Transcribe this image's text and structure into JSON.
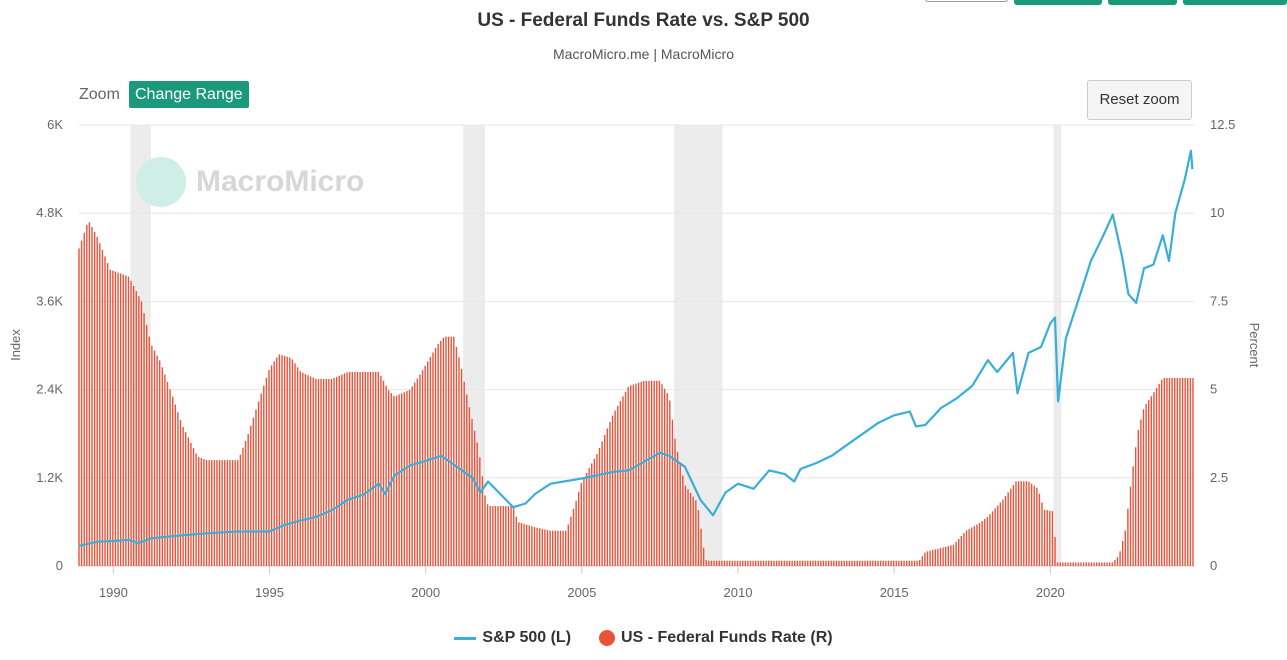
{
  "header": {
    "title": "US - Federal Funds Rate vs. S&P 500",
    "subtitle": "MacroMicro.me | MacroMicro"
  },
  "toolbar": {
    "zoom_label": "Zoom",
    "change_range_label": "Change Range",
    "reset_zoom_label": "Reset zoom",
    "accent_color": "#1a9a7a"
  },
  "watermark": {
    "text": "MacroMicro"
  },
  "legend": {
    "sp500_label": "S&P 500 (L)",
    "fed_label": "US - Federal Funds Rate (R)"
  },
  "chart_data": {
    "type": "line+bar",
    "title": "US - Federal Funds Rate vs. S&P 500",
    "subtitle": "MacroMicro.me | MacroMicro",
    "left_axis": {
      "label": "Index",
      "min": 0,
      "max": 6000,
      "ticks": [
        0,
        1200,
        2400,
        3600,
        4800,
        6000
      ],
      "tick_labels": [
        "0",
        "1.2K",
        "2.4K",
        "3.6K",
        "4.8K",
        "6K"
      ]
    },
    "right_axis": {
      "label": "Percent",
      "min": 0,
      "max": 12.5,
      "ticks": [
        0,
        2.5,
        5,
        7.5,
        10,
        12.5
      ],
      "tick_labels": [
        "0",
        "2.5",
        "5",
        "7.5",
        "10",
        "12.5"
      ]
    },
    "x_axis": {
      "min": 1988.9,
      "max": 2024.6,
      "ticks": [
        1990,
        1995,
        2000,
        2005,
        2010,
        2015,
        2020
      ],
      "tick_labels": [
        "1990",
        "1995",
        "2000",
        "2005",
        "2010",
        "2015",
        "2020"
      ]
    },
    "grid": true,
    "legend_placement": "bottom",
    "recessions": [
      [
        1990.55,
        1991.2
      ],
      [
        2001.2,
        2001.9
      ],
      [
        2007.95,
        2009.5
      ],
      [
        2020.1,
        2020.35
      ]
    ],
    "series": [
      {
        "name": "S&P 500 (L)",
        "color": "#3aaed8",
        "axis": "left",
        "kind": "line",
        "points": [
          [
            1988.9,
            275
          ],
          [
            1989.5,
            330
          ],
          [
            1990.0,
            340
          ],
          [
            1990.5,
            355
          ],
          [
            1990.8,
            310
          ],
          [
            1991.2,
            375
          ],
          [
            1992.0,
            410
          ],
          [
            1993.0,
            445
          ],
          [
            1994.0,
            470
          ],
          [
            1995.0,
            470
          ],
          [
            1995.5,
            560
          ],
          [
            1996.0,
            620
          ],
          [
            1996.5,
            670
          ],
          [
            1997.0,
            760
          ],
          [
            1997.5,
            900
          ],
          [
            1998.0,
            970
          ],
          [
            1998.5,
            1120
          ],
          [
            1998.7,
            980
          ],
          [
            1999.0,
            1230
          ],
          [
            1999.5,
            1370
          ],
          [
            2000.0,
            1430
          ],
          [
            2000.5,
            1500
          ],
          [
            2001.0,
            1350
          ],
          [
            2001.5,
            1200
          ],
          [
            2001.75,
            1000
          ],
          [
            2002.0,
            1150
          ],
          [
            2002.5,
            930
          ],
          [
            2002.8,
            800
          ],
          [
            2003.2,
            850
          ],
          [
            2003.5,
            980
          ],
          [
            2004.0,
            1120
          ],
          [
            2005.0,
            1190
          ],
          [
            2006.0,
            1280
          ],
          [
            2006.5,
            1300
          ],
          [
            2007.0,
            1420
          ],
          [
            2007.5,
            1540
          ],
          [
            2007.8,
            1500
          ],
          [
            2008.3,
            1350
          ],
          [
            2008.8,
            900
          ],
          [
            2009.2,
            690
          ],
          [
            2009.6,
            1000
          ],
          [
            2010.0,
            1120
          ],
          [
            2010.5,
            1050
          ],
          [
            2011.0,
            1300
          ],
          [
            2011.5,
            1250
          ],
          [
            2011.8,
            1150
          ],
          [
            2012.0,
            1320
          ],
          [
            2012.5,
            1400
          ],
          [
            2013.0,
            1500
          ],
          [
            2013.5,
            1650
          ],
          [
            2014.0,
            1800
          ],
          [
            2014.5,
            1950
          ],
          [
            2015.0,
            2050
          ],
          [
            2015.5,
            2100
          ],
          [
            2015.7,
            1900
          ],
          [
            2016.0,
            1920
          ],
          [
            2016.5,
            2150
          ],
          [
            2017.0,
            2280
          ],
          [
            2017.5,
            2450
          ],
          [
            2018.0,
            2800
          ],
          [
            2018.3,
            2640
          ],
          [
            2018.8,
            2900
          ],
          [
            2018.95,
            2350
          ],
          [
            2019.3,
            2900
          ],
          [
            2019.7,
            2980
          ],
          [
            2020.0,
            3300
          ],
          [
            2020.15,
            3380
          ],
          [
            2020.25,
            2240
          ],
          [
            2020.5,
            3100
          ],
          [
            2020.9,
            3620
          ],
          [
            2021.3,
            4150
          ],
          [
            2021.7,
            4500
          ],
          [
            2022.0,
            4780
          ],
          [
            2022.3,
            4200
          ],
          [
            2022.5,
            3700
          ],
          [
            2022.75,
            3580
          ],
          [
            2023.0,
            4050
          ],
          [
            2023.3,
            4100
          ],
          [
            2023.6,
            4500
          ],
          [
            2023.8,
            4150
          ],
          [
            2024.0,
            4800
          ],
          [
            2024.3,
            5250
          ],
          [
            2024.5,
            5650
          ],
          [
            2024.55,
            5400
          ]
        ]
      },
      {
        "name": "US - Federal Funds Rate (R)",
        "color": "#e8533a",
        "axis": "right",
        "kind": "bar",
        "points": [
          [
            1988.9,
            9.0
          ],
          [
            1989.2,
            9.8
          ],
          [
            1989.5,
            9.3
          ],
          [
            1989.9,
            8.4
          ],
          [
            1990.5,
            8.2
          ],
          [
            1990.9,
            7.5
          ],
          [
            1991.2,
            6.3
          ],
          [
            1991.5,
            5.8
          ],
          [
            1991.9,
            4.8
          ],
          [
            1992.2,
            4.0
          ],
          [
            1992.7,
            3.1
          ],
          [
            1993.0,
            3.0
          ],
          [
            1994.0,
            3.0
          ],
          [
            1994.3,
            3.7
          ],
          [
            1994.7,
            4.8
          ],
          [
            1995.0,
            5.6
          ],
          [
            1995.3,
            6.0
          ],
          [
            1995.7,
            5.9
          ],
          [
            1996.0,
            5.5
          ],
          [
            1996.5,
            5.3
          ],
          [
            1997.0,
            5.3
          ],
          [
            1997.5,
            5.5
          ],
          [
            1998.0,
            5.5
          ],
          [
            1998.5,
            5.5
          ],
          [
            1998.8,
            5.0
          ],
          [
            1999.0,
            4.8
          ],
          [
            1999.5,
            5.0
          ],
          [
            1999.8,
            5.4
          ],
          [
            2000.0,
            5.7
          ],
          [
            2000.4,
            6.3
          ],
          [
            2000.6,
            6.5
          ],
          [
            2000.9,
            6.5
          ],
          [
            2001.1,
            5.8
          ],
          [
            2001.4,
            4.5
          ],
          [
            2001.7,
            3.3
          ],
          [
            2001.9,
            2.0
          ],
          [
            2002.0,
            1.7
          ],
          [
            2002.8,
            1.7
          ],
          [
            2002.95,
            1.25
          ],
          [
            2003.5,
            1.1
          ],
          [
            2004.0,
            1.0
          ],
          [
            2004.5,
            1.0
          ],
          [
            2004.8,
            1.8
          ],
          [
            2005.0,
            2.4
          ],
          [
            2005.5,
            3.2
          ],
          [
            2006.0,
            4.3
          ],
          [
            2006.5,
            5.1
          ],
          [
            2007.0,
            5.25
          ],
          [
            2007.5,
            5.25
          ],
          [
            2007.8,
            4.8
          ],
          [
            2008.0,
            3.5
          ],
          [
            2008.3,
            2.3
          ],
          [
            2008.7,
            1.8
          ],
          [
            2008.95,
            0.2
          ],
          [
            2009.0,
            0.15
          ],
          [
            2015.8,
            0.15
          ],
          [
            2016.0,
            0.4
          ],
          [
            2016.9,
            0.6
          ],
          [
            2017.3,
            1.0
          ],
          [
            2017.7,
            1.2
          ],
          [
            2018.0,
            1.4
          ],
          [
            2018.5,
            1.9
          ],
          [
            2018.9,
            2.4
          ],
          [
            2019.3,
            2.4
          ],
          [
            2019.6,
            2.2
          ],
          [
            2019.8,
            1.6
          ],
          [
            2020.1,
            1.55
          ],
          [
            2020.2,
            0.1
          ],
          [
            2022.0,
            0.1
          ],
          [
            2022.2,
            0.3
          ],
          [
            2022.4,
            1.0
          ],
          [
            2022.6,
            2.5
          ],
          [
            2022.8,
            3.8
          ],
          [
            2023.0,
            4.5
          ],
          [
            2023.3,
            4.9
          ],
          [
            2023.6,
            5.33
          ],
          [
            2024.6,
            5.33
          ]
        ]
      }
    ]
  }
}
